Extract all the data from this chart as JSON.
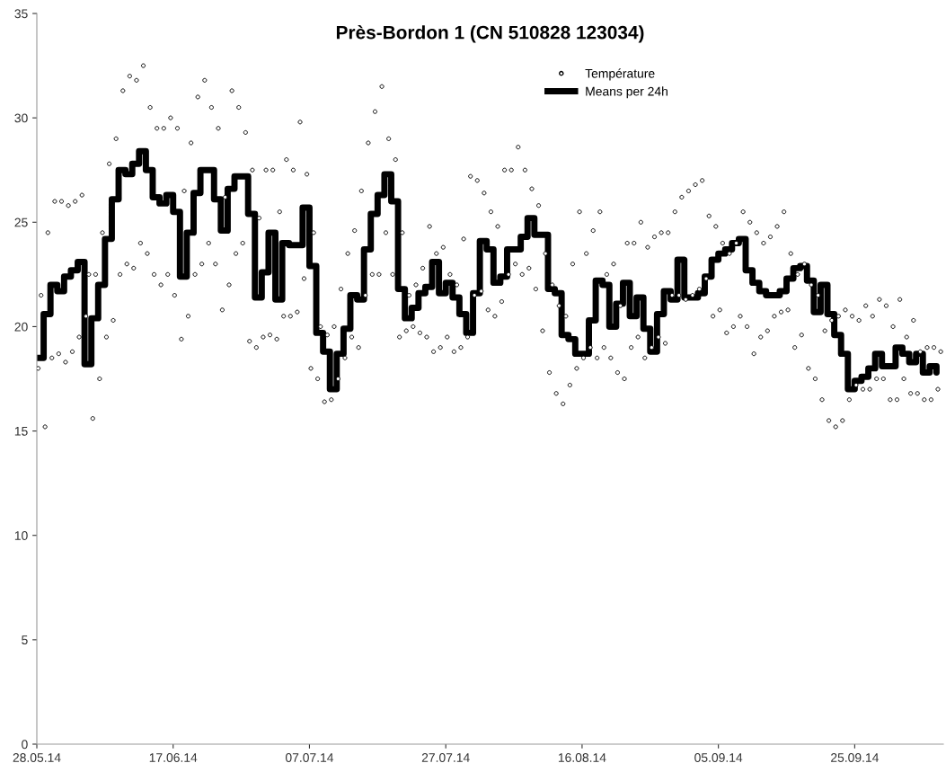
{
  "chart_data": {
    "type": "step",
    "title": "Près-Bordon 1 (CN 510828 123034)",
    "xlim": [
      "2014-05-28",
      "2014-10-08"
    ],
    "xticks": [
      {
        "value": "2014-05-28",
        "label": "28.05.14"
      },
      {
        "value": "2014-06-17",
        "label": "17.06.14"
      },
      {
        "value": "2014-07-07",
        "label": "07.07.14"
      },
      {
        "value": "2014-07-27",
        "label": "27.07.14"
      },
      {
        "value": "2014-08-16",
        "label": "16.08.14"
      },
      {
        "value": "2014-09-05",
        "label": "05.09.14"
      },
      {
        "value": "2014-09-25",
        "label": "25.09.14"
      }
    ],
    "ylim": [
      0,
      35
    ],
    "yticks": [
      0,
      5,
      10,
      15,
      20,
      25,
      30,
      35
    ],
    "grid": false,
    "legend": "top",
    "series": [
      {
        "name": "Température",
        "type": "scatter",
        "marker": "circle",
        "color": "#000000",
        "x": [
          "2014-05-28T05:00",
          "2014-05-28T15:00",
          "2014-05-29T05:00",
          "2014-05-29T15:00",
          "2014-05-30T05:00",
          "2014-05-30T15:00",
          "2014-05-31T05:00",
          "2014-05-31T15:00",
          "2014-06-01T05:00",
          "2014-06-01T15:00",
          "2014-06-02T05:00",
          "2014-06-02T15:00",
          "2014-06-03T05:00",
          "2014-06-03T15:00",
          "2014-06-04T05:00",
          "2014-06-04T15:00",
          "2014-06-05T05:00",
          "2014-06-05T15:00",
          "2014-06-06T05:00",
          "2014-06-06T15:00",
          "2014-06-07T05:00",
          "2014-06-07T15:00",
          "2014-06-08T05:00",
          "2014-06-08T15:00",
          "2014-06-09T05:00",
          "2014-06-09T15:00",
          "2014-06-10T05:00",
          "2014-06-10T15:00",
          "2014-06-11T05:00",
          "2014-06-11T15:00",
          "2014-06-12T05:00",
          "2014-06-12T15:00",
          "2014-06-13T05:00",
          "2014-06-13T15:00",
          "2014-06-14T05:00",
          "2014-06-14T15:00",
          "2014-06-15T05:00",
          "2014-06-15T15:00",
          "2014-06-16T05:00",
          "2014-06-16T15:00",
          "2014-06-17T05:00",
          "2014-06-17T15:00",
          "2014-06-18T05:00",
          "2014-06-18T15:00",
          "2014-06-19T05:00",
          "2014-06-19T15:00",
          "2014-06-20T05:00",
          "2014-06-20T15:00",
          "2014-06-21T05:00",
          "2014-06-21T15:00",
          "2014-06-22T05:00",
          "2014-06-22T15:00",
          "2014-06-23T05:00",
          "2014-06-23T15:00",
          "2014-06-24T05:00",
          "2014-06-24T15:00",
          "2014-06-25T05:00",
          "2014-06-25T15:00",
          "2014-06-26T05:00",
          "2014-06-26T15:00",
          "2014-06-27T05:00",
          "2014-06-27T15:00",
          "2014-06-28T05:00",
          "2014-06-28T15:00",
          "2014-06-29T05:00",
          "2014-06-29T15:00",
          "2014-06-30T05:00",
          "2014-06-30T15:00",
          "2014-07-01T05:00",
          "2014-07-01T15:00",
          "2014-07-02T05:00",
          "2014-07-02T15:00",
          "2014-07-03T05:00",
          "2014-07-03T15:00",
          "2014-07-04T05:00",
          "2014-07-04T15:00",
          "2014-07-05T05:00",
          "2014-07-05T15:00",
          "2014-07-06T05:00",
          "2014-07-06T15:00",
          "2014-07-07T05:00",
          "2014-07-07T15:00",
          "2014-07-08T05:00",
          "2014-07-08T15:00",
          "2014-07-09T05:00",
          "2014-07-09T15:00",
          "2014-07-10T05:00",
          "2014-07-10T15:00",
          "2014-07-11T05:00",
          "2014-07-11T15:00",
          "2014-07-12T05:00",
          "2014-07-12T15:00",
          "2014-07-13T05:00",
          "2014-07-13T15:00",
          "2014-07-14T05:00",
          "2014-07-14T15:00",
          "2014-07-15T05:00",
          "2014-07-15T15:00",
          "2014-07-16T05:00",
          "2014-07-16T15:00",
          "2014-07-17T05:00",
          "2014-07-17T15:00",
          "2014-07-18T05:00",
          "2014-07-18T15:00",
          "2014-07-19T05:00",
          "2014-07-19T15:00",
          "2014-07-20T05:00",
          "2014-07-20T15:00",
          "2014-07-21T05:00",
          "2014-07-21T15:00",
          "2014-07-22T05:00",
          "2014-07-22T15:00",
          "2014-07-23T05:00",
          "2014-07-23T15:00",
          "2014-07-24T05:00",
          "2014-07-24T15:00",
          "2014-07-25T05:00",
          "2014-07-25T15:00",
          "2014-07-26T05:00",
          "2014-07-26T15:00",
          "2014-07-27T05:00",
          "2014-07-27T15:00",
          "2014-07-28T05:00",
          "2014-07-28T15:00",
          "2014-07-29T05:00",
          "2014-07-29T15:00",
          "2014-07-30T05:00",
          "2014-07-30T15:00",
          "2014-07-31T05:00",
          "2014-07-31T15:00",
          "2014-08-01T05:00",
          "2014-08-01T15:00",
          "2014-08-02T05:00",
          "2014-08-02T15:00",
          "2014-08-03T05:00",
          "2014-08-03T15:00",
          "2014-08-04T05:00",
          "2014-08-04T15:00",
          "2014-08-05T05:00",
          "2014-08-05T15:00",
          "2014-08-06T05:00",
          "2014-08-06T15:00",
          "2014-08-07T05:00",
          "2014-08-07T15:00",
          "2014-08-08T05:00",
          "2014-08-08T15:00",
          "2014-08-09T05:00",
          "2014-08-09T15:00",
          "2014-08-10T05:00",
          "2014-08-10T15:00",
          "2014-08-11T05:00",
          "2014-08-11T15:00",
          "2014-08-12T05:00",
          "2014-08-12T15:00",
          "2014-08-13T05:00",
          "2014-08-13T15:00",
          "2014-08-14T05:00",
          "2014-08-14T15:00",
          "2014-08-15T05:00",
          "2014-08-15T15:00",
          "2014-08-16T05:00",
          "2014-08-16T15:00",
          "2014-08-17T05:00",
          "2014-08-17T15:00",
          "2014-08-18T05:00",
          "2014-08-18T15:00",
          "2014-08-19T05:00",
          "2014-08-19T15:00",
          "2014-08-20T05:00",
          "2014-08-20T15:00",
          "2014-08-21T05:00",
          "2014-08-21T15:00",
          "2014-08-22T05:00",
          "2014-08-22T15:00",
          "2014-08-23T05:00",
          "2014-08-23T15:00",
          "2014-08-24T05:00",
          "2014-08-24T15:00",
          "2014-08-25T05:00",
          "2014-08-25T15:00",
          "2014-08-26T05:00",
          "2014-08-26T15:00",
          "2014-08-27T05:00",
          "2014-08-27T15:00",
          "2014-08-28T05:00",
          "2014-08-28T15:00",
          "2014-08-29T05:00",
          "2014-08-29T15:00",
          "2014-08-30T05:00",
          "2014-08-30T15:00",
          "2014-08-31T05:00",
          "2014-08-31T15:00",
          "2014-09-01T05:00",
          "2014-09-01T15:00",
          "2014-09-02T05:00",
          "2014-09-02T15:00",
          "2014-09-03T05:00",
          "2014-09-03T15:00",
          "2014-09-04T05:00",
          "2014-09-04T15:00",
          "2014-09-05T05:00",
          "2014-09-05T15:00",
          "2014-09-06T05:00",
          "2014-09-06T15:00",
          "2014-09-07T05:00",
          "2014-09-07T15:00",
          "2014-09-08T05:00",
          "2014-09-08T15:00",
          "2014-09-09T05:00",
          "2014-09-09T15:00",
          "2014-09-10T05:00",
          "2014-09-10T15:00",
          "2014-09-11T05:00",
          "2014-09-11T15:00",
          "2014-09-12T05:00",
          "2014-09-12T15:00",
          "2014-09-13T05:00",
          "2014-09-13T15:00",
          "2014-09-14T05:00",
          "2014-09-14T15:00",
          "2014-09-15T05:00",
          "2014-09-15T15:00",
          "2014-09-16T05:00",
          "2014-09-16T15:00",
          "2014-09-17T05:00",
          "2014-09-17T15:00",
          "2014-09-18T05:00",
          "2014-09-18T15:00",
          "2014-09-19T05:00",
          "2014-09-19T15:00",
          "2014-09-20T05:00",
          "2014-09-20T15:00",
          "2014-09-21T05:00",
          "2014-09-21T15:00",
          "2014-09-22T05:00",
          "2014-09-22T15:00",
          "2014-09-23T05:00",
          "2014-09-23T15:00",
          "2014-09-24T05:00",
          "2014-09-24T15:00",
          "2014-09-25T05:00",
          "2014-09-25T15:00",
          "2014-09-26T05:00",
          "2014-09-26T15:00",
          "2014-09-27T05:00",
          "2014-09-27T15:00",
          "2014-09-28T05:00",
          "2014-09-28T15:00",
          "2014-09-29T05:00",
          "2014-09-29T15:00",
          "2014-09-30T05:00",
          "2014-09-30T15:00",
          "2014-10-01T05:00",
          "2014-10-01T15:00",
          "2014-10-02T05:00",
          "2014-10-02T15:00",
          "2014-10-03T05:00",
          "2014-10-03T15:00",
          "2014-10-04T05:00",
          "2014-10-04T15:00",
          "2014-10-05T05:00",
          "2014-10-05T15:00",
          "2014-10-06T05:00",
          "2014-10-06T15:00",
          "2014-10-07T05:00",
          "2014-10-07T15:00"
        ],
        "values": [
          18.0,
          21.5,
          15.2,
          24.5,
          18.5,
          26.0,
          18.7,
          26.0,
          18.3,
          25.8,
          18.8,
          26.0,
          19.5,
          26.3,
          20.5,
          22.5,
          15.6,
          22.5,
          17.5,
          24.5,
          19.5,
          27.8,
          20.3,
          29.0,
          22.5,
          31.3,
          23.0,
          32.0,
          22.8,
          31.8,
          24.0,
          32.5,
          23.5,
          30.5,
          22.5,
          29.5,
          22.0,
          29.5,
          22.5,
          30.0,
          21.5,
          29.5,
          19.4,
          26.5,
          20.5,
          28.8,
          22.5,
          31.0,
          23.0,
          31.8,
          24.0,
          30.5,
          23.0,
          29.5,
          20.8,
          26.2,
          22.0,
          31.3,
          23.5,
          30.5,
          24.0,
          29.3,
          19.3,
          27.5,
          19.0,
          25.2,
          19.5,
          27.5,
          19.6,
          27.5,
          19.4,
          25.5,
          20.5,
          28.0,
          20.5,
          27.5,
          20.7,
          29.8,
          22.3,
          27.3,
          18.0,
          24.5,
          17.5,
          20.0,
          16.4,
          19.6,
          16.5,
          20.0,
          17.5,
          21.8,
          18.5,
          23.5,
          19.5,
          24.6,
          19.0,
          26.5,
          21.5,
          28.8,
          22.5,
          30.3,
          22.5,
          31.5,
          24.5,
          29.0,
          22.5,
          28.0,
          19.5,
          24.5,
          19.8,
          21.5,
          20.0,
          22.0,
          19.7,
          22.8,
          19.5,
          24.8,
          18.8,
          23.5,
          19.0,
          23.8,
          19.5,
          22.5,
          18.8,
          22.0,
          19.0,
          24.2,
          19.5,
          27.2,
          21.5,
          27.0,
          21.7,
          26.4,
          20.8,
          25.5,
          20.5,
          24.8,
          21.2,
          27.5,
          22.5,
          27.5,
          23.0,
          28.6,
          22.5,
          27.5,
          22.8,
          26.6,
          21.8,
          25.8,
          19.8,
          23.5,
          17.8,
          22.0,
          16.8,
          21.0,
          16.3,
          20.5,
          17.2,
          23.0,
          18.0,
          25.5,
          18.5,
          23.5,
          19.0,
          24.6,
          18.5,
          25.5,
          19.0,
          22.5,
          18.5,
          23.0,
          17.8,
          21.0,
          17.5,
          24.0,
          19.0,
          24.0,
          19.5,
          25.0,
          18.5,
          23.8,
          19.0,
          24.3,
          19.5,
          24.5,
          19.2,
          24.5,
          21.5,
          25.5,
          21.5,
          26.2,
          21.3,
          26.5,
          21.5,
          26.8,
          21.8,
          27.0,
          22.3,
          25.3,
          20.5,
          24.8,
          20.8,
          24.0,
          19.7,
          23.5,
          20.0,
          24.0,
          20.5,
          25.5,
          20.0,
          25.0,
          18.7,
          24.5,
          19.5,
          24.0,
          19.8,
          24.3,
          20.5,
          24.8,
          20.7,
          25.5,
          20.8,
          23.5,
          19.0,
          22.5,
          19.6,
          23.0,
          18.0,
          22.0,
          17.5,
          21.5,
          16.5,
          19.8,
          15.5,
          20.3,
          15.2,
          20.5,
          15.5,
          20.8,
          16.5,
          20.5,
          17.2,
          20.3,
          17.0,
          21.0,
          17.0,
          20.5,
          17.5,
          21.3,
          17.5,
          21.0,
          16.5,
          20.0,
          16.5,
          21.3,
          17.5,
          19.5,
          16.8,
          20.3,
          16.8,
          18.8,
          16.5,
          19.0,
          16.5,
          19.0,
          17.0,
          18.8
        ]
      },
      {
        "name": "Means per 24h",
        "color": "#000000",
        "line_style": "solid",
        "x": [
          "2014-05-28",
          "2014-05-29",
          "2014-05-30",
          "2014-05-31",
          "2014-06-01",
          "2014-06-02",
          "2014-06-03",
          "2014-06-04",
          "2014-06-05",
          "2014-06-06",
          "2014-06-07",
          "2014-06-08",
          "2014-06-09",
          "2014-06-10",
          "2014-06-11",
          "2014-06-12",
          "2014-06-13",
          "2014-06-14",
          "2014-06-15",
          "2014-06-16",
          "2014-06-17",
          "2014-06-18",
          "2014-06-19",
          "2014-06-20",
          "2014-06-21",
          "2014-06-22",
          "2014-06-23",
          "2014-06-24",
          "2014-06-25",
          "2014-06-26",
          "2014-06-27",
          "2014-06-28",
          "2014-06-29",
          "2014-06-30",
          "2014-07-01",
          "2014-07-02",
          "2014-07-03",
          "2014-07-04",
          "2014-07-05",
          "2014-07-06",
          "2014-07-07",
          "2014-07-08",
          "2014-07-09",
          "2014-07-10",
          "2014-07-11",
          "2014-07-12",
          "2014-07-13",
          "2014-07-14",
          "2014-07-15",
          "2014-07-16",
          "2014-07-17",
          "2014-07-18",
          "2014-07-19",
          "2014-07-20",
          "2014-07-21",
          "2014-07-22",
          "2014-07-23",
          "2014-07-24",
          "2014-07-25",
          "2014-07-26",
          "2014-07-27",
          "2014-07-28",
          "2014-07-29",
          "2014-07-30",
          "2014-07-31",
          "2014-08-01",
          "2014-08-02",
          "2014-08-03",
          "2014-08-04",
          "2014-08-05",
          "2014-08-06",
          "2014-08-07",
          "2014-08-08",
          "2014-08-09",
          "2014-08-10",
          "2014-08-11",
          "2014-08-12",
          "2014-08-13",
          "2014-08-14",
          "2014-08-15",
          "2014-08-16",
          "2014-08-17",
          "2014-08-18",
          "2014-08-19",
          "2014-08-20",
          "2014-08-21",
          "2014-08-22",
          "2014-08-23",
          "2014-08-24",
          "2014-08-25",
          "2014-08-26",
          "2014-08-27",
          "2014-08-28",
          "2014-08-29",
          "2014-08-30",
          "2014-08-31",
          "2014-09-01",
          "2014-09-02",
          "2014-09-03",
          "2014-09-04",
          "2014-09-05",
          "2014-09-06",
          "2014-09-07",
          "2014-09-08",
          "2014-09-09",
          "2014-09-10",
          "2014-09-11",
          "2014-09-12",
          "2014-09-13",
          "2014-09-14",
          "2014-09-15",
          "2014-09-16",
          "2014-09-17",
          "2014-09-18",
          "2014-09-19",
          "2014-09-20",
          "2014-09-21",
          "2014-09-22",
          "2014-09-23",
          "2014-09-24",
          "2014-09-25",
          "2014-09-26",
          "2014-09-27",
          "2014-09-28",
          "2014-09-29",
          "2014-09-30",
          "2014-10-01",
          "2014-10-02",
          "2014-10-03",
          "2014-10-04",
          "2014-10-05",
          "2014-10-06",
          "2014-10-07"
        ],
        "values": [
          18.5,
          20.6,
          22.0,
          21.7,
          22.4,
          22.7,
          23.1,
          18.2,
          20.4,
          22.0,
          24.2,
          26.1,
          27.5,
          27.3,
          27.8,
          28.4,
          27.5,
          26.2,
          25.9,
          26.3,
          25.5,
          22.4,
          24.5,
          26.4,
          27.5,
          27.5,
          26.1,
          24.6,
          26.6,
          27.2,
          27.2,
          25.4,
          21.4,
          22.6,
          24.5,
          21.3,
          24.0,
          23.9,
          23.9,
          25.7,
          22.9,
          19.7,
          18.8,
          17.0,
          18.7,
          19.9,
          21.5,
          21.3,
          23.7,
          25.4,
          26.3,
          27.3,
          26.0,
          21.8,
          20.4,
          20.9,
          21.6,
          21.9,
          23.1,
          21.6,
          22.1,
          21.4,
          20.6,
          19.7,
          21.6,
          24.1,
          23.7,
          22.1,
          22.4,
          23.7,
          23.7,
          24.3,
          25.2,
          24.4,
          24.4,
          21.8,
          21.6,
          19.6,
          19.4,
          18.7,
          18.7,
          20.3,
          22.2,
          22.0,
          20.0,
          21.1,
          22.1,
          20.5,
          21.4,
          19.9,
          18.8,
          20.6,
          21.7,
          21.3,
          23.2,
          21.4,
          21.4,
          21.6,
          22.4,
          23.2,
          23.5,
          23.7,
          24.0,
          24.2,
          22.7,
          22.1,
          21.7,
          21.5,
          21.5,
          21.7,
          22.3,
          22.8,
          22.9,
          22.2,
          20.7,
          22.0,
          20.6,
          19.6,
          18.7,
          17.0,
          17.4,
          17.6,
          18.0,
          18.7,
          18.1,
          18.1,
          19.0,
          18.7,
          18.3,
          18.7,
          17.8,
          18.1,
          17.8
        ]
      }
    ]
  }
}
